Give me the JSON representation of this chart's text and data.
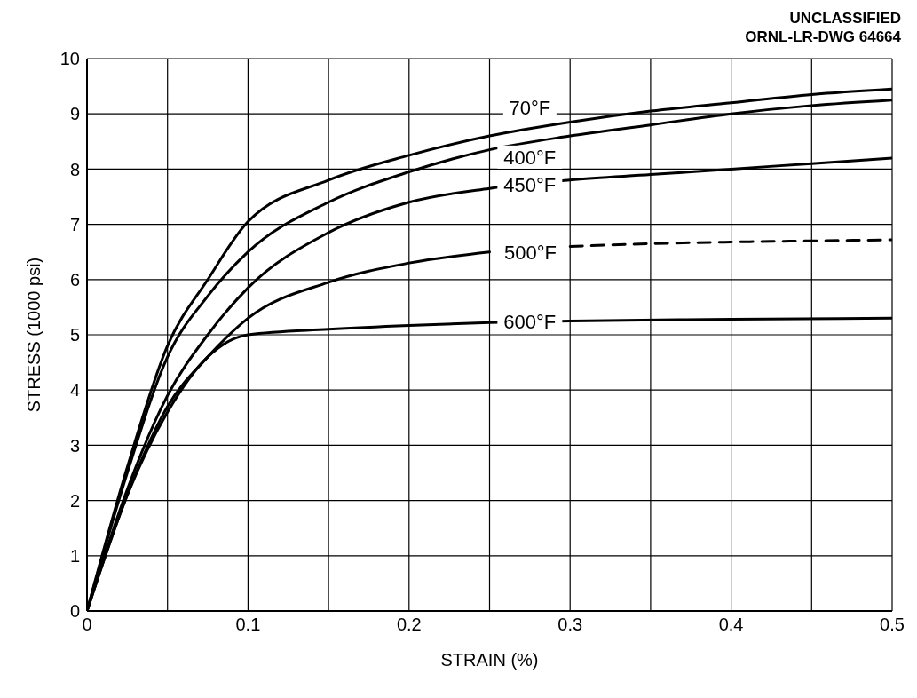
{
  "chart_data": {
    "type": "line",
    "xlabel": "STRAIN (%)",
    "ylabel": "STRESS (1000 psi)",
    "annotations": [
      "UNCLASSIFIED",
      "ORNL-LR-DWG 64664"
    ],
    "xlim": [
      0,
      0.5
    ],
    "ylim": [
      0,
      10
    ],
    "xticks": [
      0,
      0.1,
      0.2,
      0.3,
      0.4,
      0.5
    ],
    "yticks": [
      0,
      1,
      2,
      3,
      4,
      5,
      6,
      7,
      8,
      9,
      10
    ],
    "grid": true,
    "legend": false,
    "marker": "none",
    "line_style": "solid",
    "series": [
      {
        "name": "70°F",
        "color": "#000000",
        "x": [
          0,
          0.025,
          0.05,
          0.075,
          0.1,
          0.15,
          0.2,
          0.25,
          0.3,
          0.35,
          0.4,
          0.45,
          0.5
        ],
        "values": [
          0,
          2.6,
          4.8,
          6.0,
          7.05,
          7.8,
          8.25,
          8.6,
          8.85,
          9.05,
          9.2,
          9.35,
          9.45
        ]
      },
      {
        "name": "400°F",
        "color": "#000000",
        "x": [
          0,
          0.025,
          0.05,
          0.075,
          0.1,
          0.15,
          0.2,
          0.25,
          0.3,
          0.35,
          0.4,
          0.45,
          0.5
        ],
        "values": [
          0,
          2.5,
          4.6,
          5.7,
          6.5,
          7.4,
          7.95,
          8.35,
          8.6,
          8.8,
          9.0,
          9.15,
          9.25
        ]
      },
      {
        "name": "450°F",
        "color": "#000000",
        "x": [
          0,
          0.025,
          0.05,
          0.075,
          0.1,
          0.15,
          0.2,
          0.25,
          0.3,
          0.35,
          0.4,
          0.45,
          0.5
        ],
        "values": [
          0,
          2.2,
          3.9,
          5.0,
          5.85,
          6.85,
          7.4,
          7.65,
          7.8,
          7.9,
          8.0,
          8.1,
          8.2
        ]
      },
      {
        "name": "500°F",
        "color": "#000000",
        "x": [
          0,
          0.025,
          0.05,
          0.075,
          0.1,
          0.15,
          0.2,
          0.25
        ],
        "values": [
          0,
          2.1,
          3.7,
          4.6,
          5.3,
          5.95,
          6.3,
          6.5
        ]
      },
      {
        "color": "#000000",
        "line_style": "dashed",
        "x": [
          0.3,
          0.35,
          0.4,
          0.45,
          0.5
        ],
        "values": [
          6.6,
          6.65,
          6.68,
          6.7,
          6.72
        ]
      },
      {
        "name": "600°F",
        "color": "#000000",
        "x": [
          0,
          0.025,
          0.05,
          0.075,
          0.1,
          0.15,
          0.2,
          0.25,
          0.3,
          0.4,
          0.5
        ],
        "values": [
          0,
          2.1,
          3.6,
          4.6,
          5.0,
          5.1,
          5.17,
          5.22,
          5.25,
          5.28,
          5.3
        ]
      }
    ]
  }
}
